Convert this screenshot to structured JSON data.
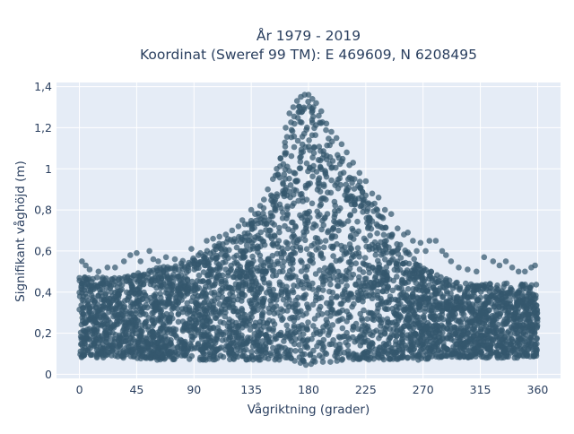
{
  "chart_data": {
    "type": "scatter",
    "title": [
      "År 1979 - 2019",
      "Koordinat (Sweref 99 TM): E 469609, N 6208495"
    ],
    "xlabel": "Vågriktning (grader)",
    "ylabel": "Signifikant våghöjd (m)",
    "xlim": [
      -18,
      378
    ],
    "ylim": [
      -0.02,
      1.42
    ],
    "xticks": [
      0,
      45,
      90,
      135,
      180,
      225,
      270,
      315,
      360
    ],
    "xtick_labels": [
      "0",
      "45",
      "90",
      "135",
      "180",
      "225",
      "270",
      "315",
      "360"
    ],
    "yticks": [
      0,
      0.2,
      0.4,
      0.6,
      0.8,
      1,
      1.2,
      1.4
    ],
    "ytick_labels": [
      "0",
      "0,2",
      "0,4",
      "0,6",
      "0,8",
      "1",
      "1,2",
      "1,4"
    ],
    "grid": true,
    "legend": "none",
    "colors": {
      "marker": "#34586e",
      "plot_bg": "#e5ecf6",
      "grid": "#ffffff"
    },
    "series": [
      {
        "envelope": {
          "x": [
            0,
            10,
            20,
            30,
            40,
            50,
            60,
            70,
            80,
            90,
            100,
            110,
            120,
            130,
            140,
            150,
            160,
            165,
            170,
            175,
            180,
            185,
            190,
            195,
            200,
            210,
            220,
            230,
            240,
            250,
            260,
            270,
            280,
            290,
            300,
            310,
            320,
            330,
            340,
            350,
            360
          ],
          "y_min": [
            0.08,
            0.08,
            0.08,
            0.08,
            0.08,
            0.07,
            0.07,
            0.07,
            0.07,
            0.07,
            0.07,
            0.07,
            0.07,
            0.07,
            0.07,
            0.07,
            0.07,
            0.07,
            0.06,
            0.05,
            0.04,
            0.05,
            0.06,
            0.06,
            0.06,
            0.07,
            0.07,
            0.07,
            0.07,
            0.07,
            0.07,
            0.07,
            0.08,
            0.08,
            0.08,
            0.08,
            0.08,
            0.08,
            0.08,
            0.08,
            0.08
          ],
          "y_max": [
            0.47,
            0.48,
            0.47,
            0.47,
            0.48,
            0.5,
            0.52,
            0.53,
            0.55,
            0.58,
            0.61,
            0.64,
            0.67,
            0.72,
            0.78,
            0.88,
            1.1,
            1.22,
            1.3,
            1.33,
            1.34,
            1.32,
            1.25,
            1.18,
            1.13,
            1.05,
            0.95,
            0.85,
            0.77,
            0.65,
            0.58,
            0.52,
            0.49,
            0.46,
            0.45,
            0.44,
            0.44,
            0.45,
            0.44,
            0.44,
            0.44
          ]
        },
        "outliers": [
          [
            2,
            0.55
          ],
          [
            5,
            0.53
          ],
          [
            8,
            0.51
          ],
          [
            15,
            0.5
          ],
          [
            22,
            0.52
          ],
          [
            28,
            0.52
          ],
          [
            35,
            0.55
          ],
          [
            40,
            0.58
          ],
          [
            45,
            0.59
          ],
          [
            48,
            0.55
          ],
          [
            55,
            0.6
          ],
          [
            58,
            0.56
          ],
          [
            62,
            0.55
          ],
          [
            68,
            0.57
          ],
          [
            75,
            0.56
          ],
          [
            80,
            0.54
          ],
          [
            88,
            0.61
          ],
          [
            95,
            0.59
          ],
          [
            100,
            0.65
          ],
          [
            105,
            0.66
          ],
          [
            110,
            0.67
          ],
          [
            115,
            0.68
          ],
          [
            120,
            0.7
          ],
          [
            125,
            0.72
          ],
          [
            128,
            0.75
          ],
          [
            130,
            0.73
          ],
          [
            135,
            0.8
          ],
          [
            138,
            0.78
          ],
          [
            142,
            0.82
          ],
          [
            145,
            0.85
          ],
          [
            148,
            0.9
          ],
          [
            152,
            0.95
          ],
          [
            155,
            1.0
          ],
          [
            158,
            1.05
          ],
          [
            162,
            1.2
          ],
          [
            165,
            1.27
          ],
          [
            168,
            1.3
          ],
          [
            171,
            1.33
          ],
          [
            174,
            1.35
          ],
          [
            177,
            1.36
          ],
          [
            180,
            1.36
          ],
          [
            183,
            1.34
          ],
          [
            186,
            1.32
          ],
          [
            190,
            1.28
          ],
          [
            194,
            1.22
          ],
          [
            198,
            1.18
          ],
          [
            202,
            1.15
          ],
          [
            206,
            1.12
          ],
          [
            210,
            1.08
          ],
          [
            215,
            1.03
          ],
          [
            220,
            0.98
          ],
          [
            225,
            0.94
          ],
          [
            230,
            0.88
          ],
          [
            235,
            0.86
          ],
          [
            240,
            0.8
          ],
          [
            245,
            0.78
          ],
          [
            250,
            0.71
          ],
          [
            255,
            0.68
          ],
          [
            258,
            0.69
          ],
          [
            262,
            0.65
          ],
          [
            265,
            0.6
          ],
          [
            268,
            0.64
          ],
          [
            272,
            0.6
          ],
          [
            275,
            0.65
          ],
          [
            280,
            0.65
          ],
          [
            285,
            0.6
          ],
          [
            288,
            0.58
          ],
          [
            292,
            0.55
          ],
          [
            298,
            0.52
          ],
          [
            305,
            0.51
          ],
          [
            312,
            0.5
          ],
          [
            318,
            0.57
          ],
          [
            325,
            0.55
          ],
          [
            330,
            0.53
          ],
          [
            335,
            0.55
          ],
          [
            340,
            0.52
          ],
          [
            345,
            0.5
          ],
          [
            350,
            0.5
          ],
          [
            355,
            0.52
          ],
          [
            358,
            0.53
          ]
        ]
      }
    ]
  }
}
